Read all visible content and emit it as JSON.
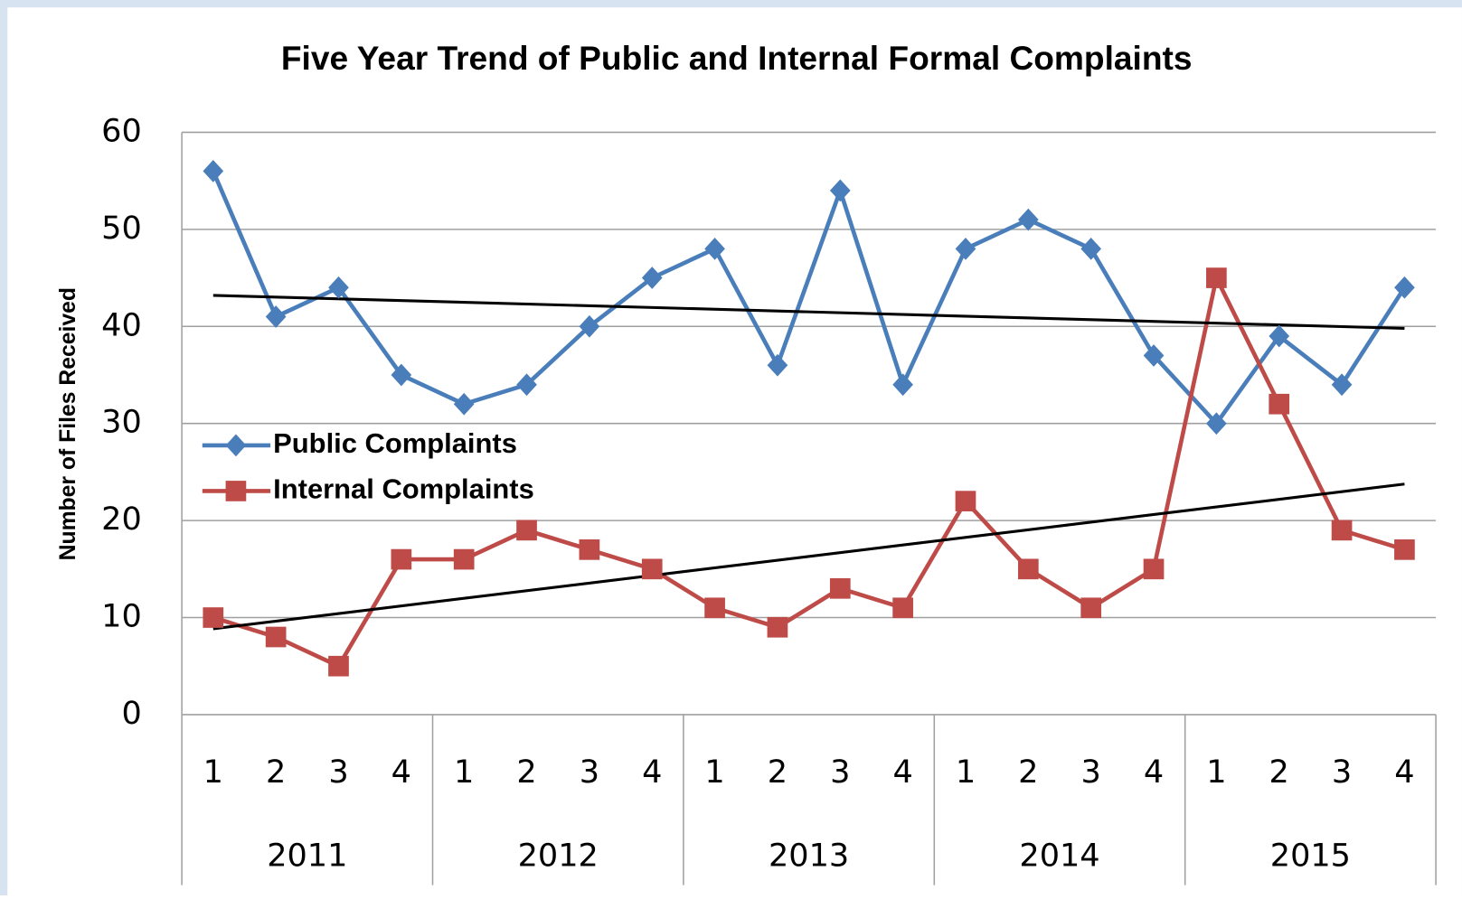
{
  "chart_data": {
    "type": "line",
    "title": "Five Year Trend of Public and Internal Formal Complaints",
    "y_label": "Number of Files Received",
    "categories": [
      "1",
      "2",
      "3",
      "4",
      "1",
      "2",
      "3",
      "4",
      "1",
      "2",
      "3",
      "4",
      "1",
      "2",
      "3",
      "4",
      "1",
      "2",
      "3",
      "4"
    ],
    "category_groups": [
      "2011",
      "2012",
      "2013",
      "2014",
      "2015"
    ],
    "series": [
      {
        "name": "Public Complaints",
        "color": "#4a7ebb",
        "marker": "diamond",
        "values": [
          56,
          41,
          44,
          35,
          32,
          34,
          40,
          45,
          48,
          36,
          54,
          34,
          48,
          51,
          48,
          37,
          30,
          39,
          34,
          44
        ]
      },
      {
        "name": "Internal Complaints",
        "color": "#be4b48",
        "marker": "square",
        "values": [
          10,
          8,
          5,
          16,
          16,
          19,
          17,
          15,
          11,
          9,
          13,
          11,
          22,
          15,
          11,
          15,
          45,
          32,
          19,
          17
        ]
      }
    ],
    "trendline": true,
    "trendline_color": "#000000",
    "ylim": [
      0,
      60
    ],
    "yticks": [
      0,
      10,
      20,
      30,
      40,
      50,
      60
    ],
    "grid": true,
    "legend": "left"
  }
}
